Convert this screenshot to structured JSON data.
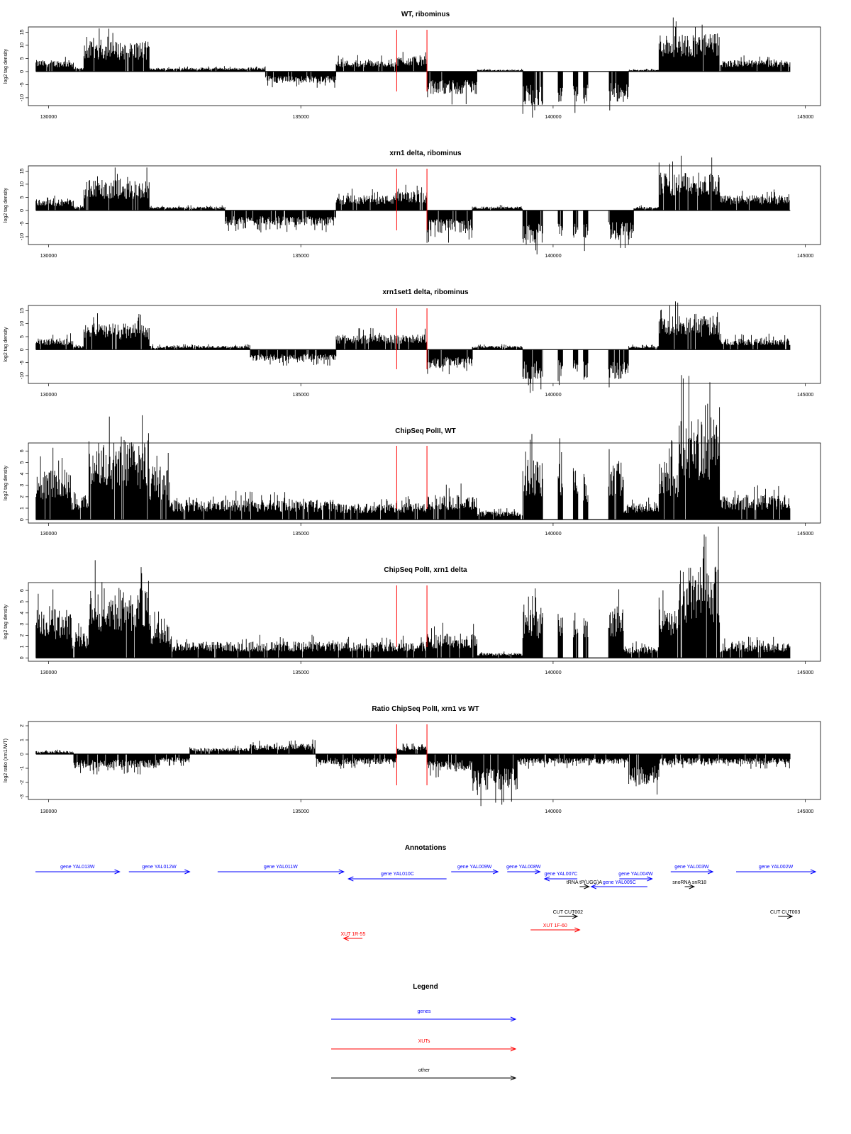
{
  "colors": {
    "signal": "#000000",
    "marker": "#ff0000",
    "genes": "#0000ff",
    "xuts": "#ff0000",
    "other": "#000000"
  },
  "chart_data": [
    {
      "type": "area",
      "title": "WT, ribominus",
      "ylabel": "log2 tag density",
      "xlim": [
        129600,
        145300
      ],
      "ylim": [
        -13,
        17
      ],
      "xticks": [
        130000,
        135000,
        140000,
        145000
      ],
      "yticks": [
        -10,
        -5,
        0,
        5,
        10,
        15
      ],
      "markers_x": [
        136900,
        137500
      ],
      "segments": [
        {
          "x": [
            129750,
            130500
          ],
          "y": 3,
          "sign": 1
        },
        {
          "x": [
            130500,
            130700
          ],
          "y": 1,
          "sign": 1
        },
        {
          "x": [
            130700,
            132000
          ],
          "y": 8,
          "sign": 1
        },
        {
          "x": [
            132000,
            134300
          ],
          "y": 1,
          "sign": 1
        },
        {
          "x": [
            134300,
            135700
          ],
          "y": -3,
          "sign": -1
        },
        {
          "x": [
            135700,
            136900
          ],
          "y": 3,
          "sign": 1
        },
        {
          "x": [
            136900,
            137500
          ],
          "y": 4,
          "sign": 1
        },
        {
          "x": [
            137500,
            138500
          ],
          "y": -6,
          "sign": -1
        },
        {
          "x": [
            138500,
            139400
          ],
          "y": 0.5,
          "sign": 1
        },
        {
          "x": [
            139400,
            139800
          ],
          "y": -9,
          "sign": -1
        },
        {
          "x": [
            140100,
            140200
          ],
          "y": -8,
          "sign": -1
        },
        {
          "x": [
            140400,
            140500
          ],
          "y": -8,
          "sign": -1
        },
        {
          "x": [
            140600,
            140700
          ],
          "y": -9,
          "sign": -1
        },
        {
          "x": [
            141100,
            141500
          ],
          "y": -8,
          "sign": -1
        },
        {
          "x": [
            141500,
            142100
          ],
          "y": 0.5,
          "sign": 1
        },
        {
          "x": [
            142100,
            143300
          ],
          "y": 10,
          "sign": 1
        },
        {
          "x": [
            143300,
            144700
          ],
          "y": 3,
          "sign": 1
        }
      ]
    },
    {
      "type": "area",
      "title": "xrn1 delta, ribominus",
      "ylabel": "log2 tag density",
      "xlim": [
        129600,
        145300
      ],
      "ylim": [
        -13,
        17
      ],
      "xticks": [
        130000,
        135000,
        140000,
        145000
      ],
      "yticks": [
        -10,
        -5,
        0,
        5,
        10,
        15
      ],
      "markers_x": [
        136900,
        137500
      ],
      "segments": [
        {
          "x": [
            129750,
            130500
          ],
          "y": 3,
          "sign": 1
        },
        {
          "x": [
            130500,
            130700
          ],
          "y": 1,
          "sign": 1
        },
        {
          "x": [
            130700,
            132000
          ],
          "y": 8,
          "sign": 1
        },
        {
          "x": [
            132000,
            133500
          ],
          "y": 1,
          "sign": 1
        },
        {
          "x": [
            133500,
            135700
          ],
          "y": -4,
          "sign": -1
        },
        {
          "x": [
            135700,
            136900
          ],
          "y": 4,
          "sign": 1
        },
        {
          "x": [
            136900,
            137500
          ],
          "y": 5,
          "sign": 1
        },
        {
          "x": [
            137500,
            138400
          ],
          "y": -6,
          "sign": -1
        },
        {
          "x": [
            138400,
            139400
          ],
          "y": 1,
          "sign": 1
        },
        {
          "x": [
            139400,
            139800
          ],
          "y": -9,
          "sign": -1
        },
        {
          "x": [
            140100,
            140200
          ],
          "y": -8,
          "sign": -1
        },
        {
          "x": [
            140400,
            140500
          ],
          "y": -8,
          "sign": -1
        },
        {
          "x": [
            140600,
            140700
          ],
          "y": -9,
          "sign": -1
        },
        {
          "x": [
            141100,
            141600
          ],
          "y": -8,
          "sign": -1
        },
        {
          "x": [
            141600,
            142100
          ],
          "y": 1,
          "sign": 1
        },
        {
          "x": [
            142100,
            143300
          ],
          "y": 10,
          "sign": 1
        },
        {
          "x": [
            143300,
            144700
          ],
          "y": 4,
          "sign": 1
        }
      ]
    },
    {
      "type": "area",
      "title": "xrn1set1 delta, ribominus",
      "ylabel": "log2 tag density",
      "xlim": [
        129600,
        145300
      ],
      "ylim": [
        -13,
        17
      ],
      "xticks": [
        130000,
        135000,
        140000,
        145000
      ],
      "yticks": [
        -10,
        -5,
        0,
        5,
        10,
        15
      ],
      "markers_x": [
        136900,
        137500
      ],
      "segments": [
        {
          "x": [
            129750,
            130500
          ],
          "y": 3,
          "sign": 1
        },
        {
          "x": [
            130500,
            130700
          ],
          "y": 1,
          "sign": 1
        },
        {
          "x": [
            130700,
            132000
          ],
          "y": 7,
          "sign": 1
        },
        {
          "x": [
            132000,
            134000
          ],
          "y": 1,
          "sign": 1
        },
        {
          "x": [
            134000,
            135700
          ],
          "y": -3,
          "sign": -1
        },
        {
          "x": [
            135700,
            136900
          ],
          "y": 4,
          "sign": 1
        },
        {
          "x": [
            136900,
            137500
          ],
          "y": 4,
          "sign": 1
        },
        {
          "x": [
            137500,
            138400
          ],
          "y": -5,
          "sign": -1
        },
        {
          "x": [
            138400,
            139400
          ],
          "y": 1,
          "sign": 1
        },
        {
          "x": [
            139400,
            139800
          ],
          "y": -8,
          "sign": -1
        },
        {
          "x": [
            140100,
            140200
          ],
          "y": -7,
          "sign": -1
        },
        {
          "x": [
            140400,
            140500
          ],
          "y": -7,
          "sign": -1
        },
        {
          "x": [
            140600,
            140700
          ],
          "y": -8,
          "sign": -1
        },
        {
          "x": [
            141100,
            141500
          ],
          "y": -8,
          "sign": -1
        },
        {
          "x": [
            141500,
            142100
          ],
          "y": 1,
          "sign": 1
        },
        {
          "x": [
            142100,
            143300
          ],
          "y": 9,
          "sign": 1
        },
        {
          "x": [
            143300,
            144700
          ],
          "y": 3,
          "sign": 1
        }
      ]
    },
    {
      "type": "area",
      "title": "ChipSeq PolII, WT",
      "ylabel": "log2 tag density",
      "xlim": [
        129600,
        145300
      ],
      "ylim": [
        -0.3,
        6.7
      ],
      "xticks": [
        130000,
        135000,
        140000,
        145000
      ],
      "yticks": [
        0,
        1,
        2,
        3,
        4,
        5,
        6
      ],
      "markers_x": [
        136900,
        137500
      ],
      "segments": [
        {
          "x": [
            129750,
            130450
          ],
          "y": 3.2,
          "sign": 1
        },
        {
          "x": [
            130450,
            130800
          ],
          "y": 1.5,
          "sign": 1
        },
        {
          "x": [
            130800,
            132000
          ],
          "y": 4.8,
          "sign": 1
        },
        {
          "x": [
            132000,
            132400
          ],
          "y": 3,
          "sign": 1
        },
        {
          "x": [
            132400,
            135700
          ],
          "y": 1.2,
          "sign": 1
        },
        {
          "x": [
            135700,
            137500
          ],
          "y": 1,
          "sign": 1
        },
        {
          "x": [
            137500,
            138500
          ],
          "y": 1.5,
          "sign": 1
        },
        {
          "x": [
            138500,
            139400
          ],
          "y": 0.5,
          "sign": 1
        },
        {
          "x": [
            139400,
            139800
          ],
          "y": 3.6,
          "sign": 1
        },
        {
          "x": [
            140100,
            140200
          ],
          "y": 3.4,
          "sign": 1
        },
        {
          "x": [
            140400,
            140500
          ],
          "y": 3.2,
          "sign": 1
        },
        {
          "x": [
            140600,
            140700
          ],
          "y": 2.8,
          "sign": 1
        },
        {
          "x": [
            141100,
            141400
          ],
          "y": 3.6,
          "sign": 1
        },
        {
          "x": [
            141400,
            142100
          ],
          "y": 1,
          "sign": 1
        },
        {
          "x": [
            142100,
            142500
          ],
          "y": 3.5,
          "sign": 1
        },
        {
          "x": [
            142500,
            143300
          ],
          "y": 6.2,
          "sign": 1
        },
        {
          "x": [
            143300,
            144700
          ],
          "y": 1.5,
          "sign": 1
        }
      ]
    },
    {
      "type": "area",
      "title": "ChipSeq PolII, xrn1 delta",
      "ylabel": "log2 tag density",
      "xlim": [
        129600,
        145300
      ],
      "ylim": [
        -0.3,
        6.7
      ],
      "xticks": [
        130000,
        135000,
        140000,
        145000
      ],
      "yticks": [
        0,
        1,
        2,
        3,
        4,
        5,
        6
      ],
      "markers_x": [
        136900,
        137500
      ],
      "segments": [
        {
          "x": [
            129750,
            130450
          ],
          "y": 3,
          "sign": 1
        },
        {
          "x": [
            130450,
            130800
          ],
          "y": 1.5,
          "sign": 1
        },
        {
          "x": [
            130800,
            132000
          ],
          "y": 4.3,
          "sign": 1
        },
        {
          "x": [
            132000,
            132400
          ],
          "y": 2.2,
          "sign": 1
        },
        {
          "x": [
            132400,
            135700
          ],
          "y": 1,
          "sign": 1
        },
        {
          "x": [
            135700,
            137500
          ],
          "y": 1,
          "sign": 1
        },
        {
          "x": [
            137500,
            138500
          ],
          "y": 1.5,
          "sign": 1
        },
        {
          "x": [
            138500,
            139400
          ],
          "y": 0.3,
          "sign": 1
        },
        {
          "x": [
            139400,
            139800
          ],
          "y": 3.1,
          "sign": 1
        },
        {
          "x": [
            140100,
            140200
          ],
          "y": 2.8,
          "sign": 1
        },
        {
          "x": [
            140400,
            140500
          ],
          "y": 2.6,
          "sign": 1
        },
        {
          "x": [
            140600,
            140700
          ],
          "y": 2.5,
          "sign": 1
        },
        {
          "x": [
            141100,
            141400
          ],
          "y": 3.2,
          "sign": 1
        },
        {
          "x": [
            141400,
            142100
          ],
          "y": 0.7,
          "sign": 1
        },
        {
          "x": [
            142100,
            142500
          ],
          "y": 3,
          "sign": 1
        },
        {
          "x": [
            142500,
            143300
          ],
          "y": 5.6,
          "sign": 1
        },
        {
          "x": [
            143300,
            144700
          ],
          "y": 0.9,
          "sign": 1
        }
      ]
    },
    {
      "type": "area",
      "title": "Ratio ChipSeq PolII, xrn1 vs WT",
      "ylabel": "log2 ratio (xrn1/WT)",
      "xlim": [
        129600,
        145300
      ],
      "ylim": [
        -3.2,
        2.3
      ],
      "xticks": [
        130000,
        135000,
        140000,
        145000
      ],
      "yticks": [
        -3,
        -2,
        -1,
        0,
        1,
        2
      ],
      "markers_x": [
        136900,
        137500
      ],
      "segments": [
        {
          "x": [
            129750,
            130500
          ],
          "y": 0.15,
          "sign": 1
        },
        {
          "x": [
            130500,
            132200
          ],
          "y": -0.7,
          "sign": -1
        },
        {
          "x": [
            132200,
            132800
          ],
          "y": -0.4,
          "sign": -1
        },
        {
          "x": [
            132800,
            134000
          ],
          "y": 0.3,
          "sign": 1
        },
        {
          "x": [
            134000,
            135300
          ],
          "y": 0.5,
          "sign": 1
        },
        {
          "x": [
            135300,
            136900
          ],
          "y": -0.5,
          "sign": -1
        },
        {
          "x": [
            136900,
            137500
          ],
          "y": 0.4,
          "sign": 1
        },
        {
          "x": [
            137500,
            138400
          ],
          "y": -0.8,
          "sign": -1
        },
        {
          "x": [
            138400,
            139300
          ],
          "y": -1.8,
          "sign": -1
        },
        {
          "x": [
            139300,
            141500
          ],
          "y": -0.5,
          "sign": -1
        },
        {
          "x": [
            141500,
            142100
          ],
          "y": -1.5,
          "sign": -1
        },
        {
          "x": [
            142100,
            144700
          ],
          "y": -0.5,
          "sign": -1
        }
      ]
    }
  ],
  "annotations": {
    "title": "Annotations",
    "items": [
      {
        "label": "gene YAL013W",
        "cat": "genes",
        "row": 1,
        "x": [
          130100,
          131900
        ],
        "dir": "right"
      },
      {
        "label": "gene YAL012W",
        "cat": "genes",
        "row": 1,
        "x": [
          132100,
          133400
        ],
        "dir": "right"
      },
      {
        "label": "gene YAL011W",
        "cat": "genes",
        "row": 1,
        "x": [
          134000,
          136700
        ],
        "dir": "right"
      },
      {
        "label": "gene YAL010C",
        "cat": "genes",
        "row": 2,
        "x": [
          136800,
          138900
        ],
        "dir": "left"
      },
      {
        "label": "gene YAL009W",
        "cat": "genes",
        "row": 1,
        "x": [
          139000,
          140000
        ],
        "dir": "right"
      },
      {
        "label": "gene YAL008W",
        "cat": "genes",
        "row": 1,
        "x": [
          140200,
          140900
        ],
        "dir": "right"
      },
      {
        "label": "gene YAL007C",
        "cat": "genes",
        "row": 2,
        "x": [
          141000,
          141700
        ],
        "dir": "left"
      },
      {
        "label": "tRNA tP(UGG)A",
        "cat": "other",
        "row": 3,
        "x": [
          141750,
          141950
        ],
        "dir": "right"
      },
      {
        "label": "gene YAL005C",
        "cat": "genes",
        "row": 3,
        "x": [
          142000,
          143200
        ],
        "dir": "left"
      },
      {
        "label": "gene YAL004W",
        "cat": "genes",
        "row": 2,
        "x": [
          142600,
          143300
        ],
        "dir": "right"
      },
      {
        "label": "gene YAL003W",
        "cat": "genes",
        "row": 1,
        "x": [
          143700,
          144600
        ],
        "dir": "right"
      },
      {
        "label": "snoRNA snR18",
        "cat": "other",
        "row": 3,
        "x": [
          144000,
          144200
        ],
        "dir": "right"
      },
      {
        "label": "gene YAL002W",
        "cat": "genes",
        "row": 1,
        "x": [
          145100,
          146800
        ],
        "dir": "right"
      },
      {
        "label": "CUT CUT002",
        "cat": "other",
        "row": 4,
        "x": [
          141300,
          141700
        ],
        "dir": "right"
      },
      {
        "label": "CUT CUT003",
        "cat": "other",
        "row": 4,
        "x": [
          146000,
          146300
        ],
        "dir": "right"
      },
      {
        "label": "XUT 1F-60",
        "cat": "xuts",
        "row": 5,
        "x": [
          140700,
          141750
        ],
        "dir": "right"
      },
      {
        "label": "XUT 1R-55",
        "cat": "xuts",
        "row": 6,
        "x": [
          136700,
          137100
        ],
        "dir": "left"
      }
    ]
  },
  "legend": {
    "title": "Legend",
    "items": [
      {
        "label": "genes",
        "cat": "genes"
      },
      {
        "label": "XUTs",
        "cat": "xuts"
      },
      {
        "label": "other",
        "cat": "other"
      }
    ]
  }
}
